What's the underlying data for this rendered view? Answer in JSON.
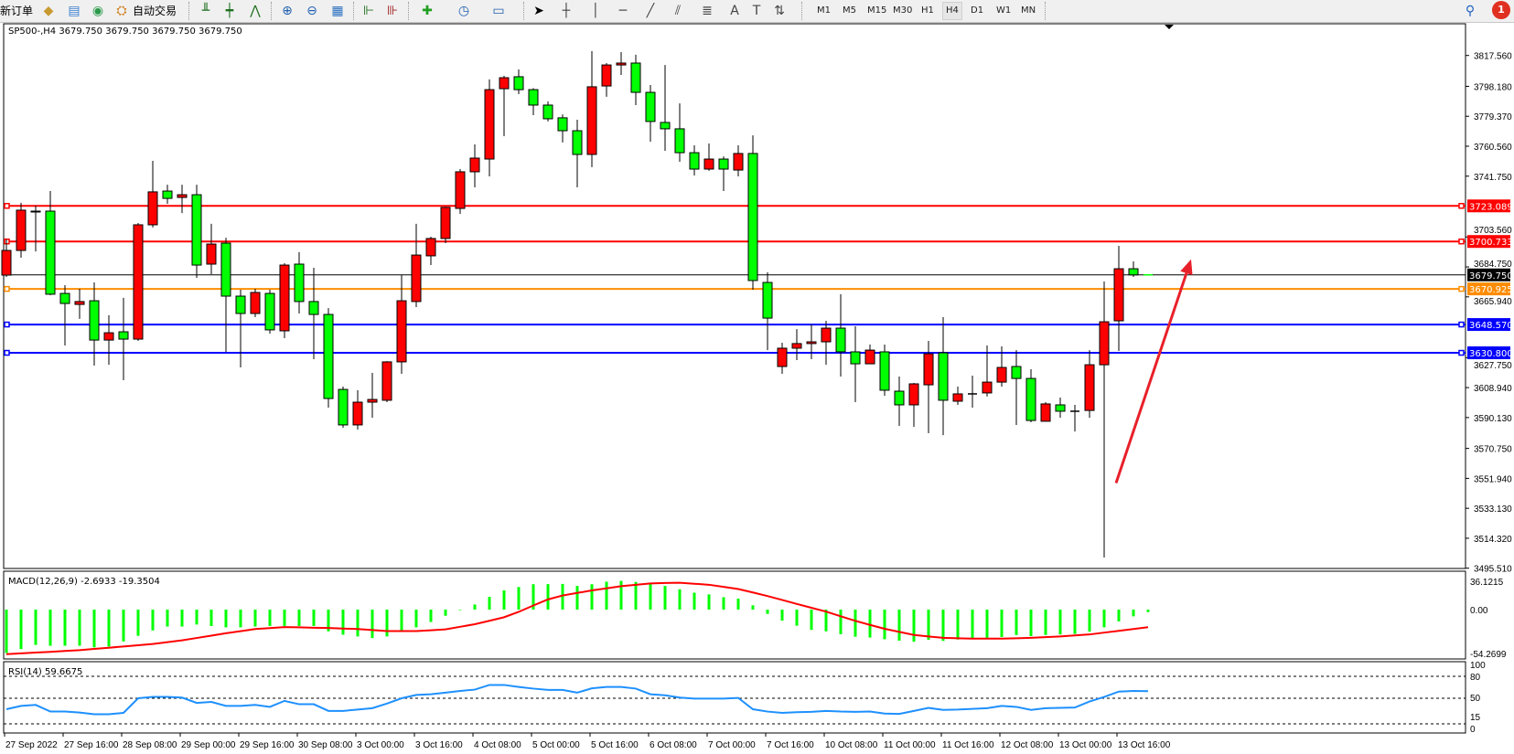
{
  "toolbar": {
    "new_order": "新订单",
    "auto_trading": "自动交易",
    "icons": [
      "history-center-icon",
      "market-watch-icon",
      "signals-icon",
      "bar-chart-icon",
      "candlestick-chart-icon",
      "line-chart-icon",
      "zoom-in-icon",
      "zoom-out-icon",
      "tile-windows-icon",
      "chart-shift-icon",
      "autoscroll-icon",
      "indicators-icon",
      "periods-icon",
      "templates-icon",
      "cursor-icon",
      "crosshair-icon",
      "vertical-line-icon",
      "horizontal-line-icon",
      "trendline-icon",
      "equidistant-channel-icon",
      "fibonacci-icon",
      "text-icon",
      "text-label-icon",
      "arrows-icon"
    ],
    "periods": [
      "M1",
      "M5",
      "M15",
      "M30",
      "H1",
      "H4",
      "D1",
      "W1",
      "MN"
    ],
    "active_period": "H4",
    "notification_count": "1"
  },
  "chart_data": {
    "type": "candlestick",
    "title": "SP500-,H4  3679.750 3679.750 3679.750 3679.750",
    "up_color": "#ff0000",
    "down_color": "#00ff00",
    "candles": [
      [
        3679.6,
        3702.0,
        3678.5,
        3695.1
      ],
      [
        3695.1,
        3725.0,
        3690.5,
        3720.4
      ],
      [
        3719.8,
        3723.2,
        3694.5,
        3719.7
      ],
      [
        3719.8,
        3732.4,
        3667.0,
        3667.6
      ],
      [
        3668.1,
        3673.3,
        3635.4,
        3661.8
      ],
      [
        3661.2,
        3671.0,
        3652.1,
        3663.0
      ],
      [
        3663.5,
        3675.0,
        3622.8,
        3638.8
      ],
      [
        3638.8,
        3654.4,
        3623.3,
        3643.4
      ],
      [
        3644.0,
        3665.3,
        3613.6,
        3639.4
      ],
      [
        3639.4,
        3712.3,
        3638.3,
        3711.2
      ],
      [
        3711.2,
        3751.4,
        3709.5,
        3731.9
      ],
      [
        3732.4,
        3736.4,
        3724.4,
        3727.8
      ],
      [
        3728.4,
        3736.4,
        3718.6,
        3730.1
      ],
      [
        3730.1,
        3736.4,
        3677.9,
        3685.9
      ],
      [
        3686.5,
        3711.8,
        3680.2,
        3699.1
      ],
      [
        3699.7,
        3703.1,
        3631.4,
        3666.4
      ],
      [
        3666.4,
        3670.4,
        3621.6,
        3655.5
      ],
      [
        3655.5,
        3671.0,
        3653.2,
        3668.7
      ],
      [
        3668.1,
        3670.4,
        3642.9,
        3645.2
      ],
      [
        3644.6,
        3687.1,
        3640.0,
        3685.9
      ],
      [
        3686.5,
        3694.0,
        3655.5,
        3663.0
      ],
      [
        3663.0,
        3684.2,
        3626.8,
        3654.9
      ],
      [
        3654.9,
        3658.9,
        3596.4,
        3602.1
      ],
      [
        3607.8,
        3609.6,
        3583.7,
        3585.5
      ],
      [
        3585.5,
        3607.3,
        3582.6,
        3599.8
      ],
      [
        3599.8,
        3618.2,
        3590.0,
        3601.5
      ],
      [
        3601.0,
        3625.6,
        3599.8,
        3625.1
      ],
      [
        3625.1,
        3679.6,
        3617.6,
        3663.5
      ],
      [
        3663.0,
        3711.8,
        3659.5,
        3692.2
      ],
      [
        3691.7,
        3703.7,
        3685.9,
        3702.6
      ],
      [
        3702.6,
        3722.5,
        3699.7,
        3722.1
      ],
      [
        3721.5,
        3746.2,
        3718.1,
        3744.5
      ],
      [
        3744.5,
        3761.7,
        3734.7,
        3753.1
      ],
      [
        3752.5,
        3802.5,
        3741.6,
        3796.1
      ],
      [
        3796.7,
        3804.8,
        3766.9,
        3803.6
      ],
      [
        3804.2,
        3808.8,
        3793.3,
        3796.1
      ],
      [
        3796.1,
        3797.0,
        3780.1,
        3786.4
      ],
      [
        3786.4,
        3788.7,
        3776.1,
        3777.8
      ],
      [
        3778.4,
        3780.6,
        3762.9,
        3770.3
      ],
      [
        3770.3,
        3777.2,
        3734.7,
        3755.4
      ],
      [
        3755.4,
        3820.3,
        3747.4,
        3797.9
      ],
      [
        3798.4,
        3812.8,
        3791.6,
        3811.6
      ],
      [
        3811.6,
        3819.7,
        3805.3,
        3812.8
      ],
      [
        3812.8,
        3818.0,
        3786.4,
        3794.4
      ],
      [
        3794.4,
        3799.0,
        3763.4,
        3776.1
      ],
      [
        3775.5,
        3811.6,
        3757.7,
        3771.5
      ],
      [
        3771.5,
        3787.5,
        3750.8,
        3756.5
      ],
      [
        3756.5,
        3761.1,
        3742.2,
        3746.2
      ],
      [
        3746.2,
        3762.3,
        3745.1,
        3752.5
      ],
      [
        3752.5,
        3754.2,
        3732.4,
        3746.2
      ],
      [
        3745.6,
        3761.1,
        3741.6,
        3756.0
      ],
      [
        3756.0,
        3767.4,
        3670.4,
        3676.2
      ],
      [
        3675.0,
        3681.3,
        3632.5,
        3652.6
      ],
      [
        3622.2,
        3637.1,
        3617.6,
        3633.7
      ],
      [
        3633.7,
        3645.7,
        3626.2,
        3636.6
      ],
      [
        3636.6,
        3648.6,
        3626.8,
        3637.7
      ],
      [
        3637.7,
        3650.9,
        3623.3,
        3646.3
      ],
      [
        3646.3,
        3667.6,
        3615.9,
        3631.4
      ],
      [
        3631.4,
        3647.5,
        3599.8,
        3623.9
      ],
      [
        3623.9,
        3636.0,
        3623.9,
        3632.5
      ],
      [
        3631.4,
        3636.0,
        3603.8,
        3607.3
      ],
      [
        3606.7,
        3615.9,
        3584.9,
        3598.1
      ],
      [
        3598.1,
        3611.9,
        3584.3,
        3611.3
      ],
      [
        3610.7,
        3638.3,
        3580.3,
        3630.2
      ],
      [
        3630.8,
        3653.2,
        3579.1,
        3601.0
      ],
      [
        3600.4,
        3609.6,
        3598.1,
        3605.0
      ],
      [
        3605.0,
        3616.5,
        3596.4,
        3605.0
      ],
      [
        3605.6,
        3635.4,
        3603.3,
        3612.4
      ],
      [
        3612.4,
        3634.8,
        3609.6,
        3621.6
      ],
      [
        3622.2,
        3632.5,
        3585.5,
        3614.7
      ],
      [
        3614.7,
        3620.5,
        3587.2,
        3588.3
      ],
      [
        3587.8,
        3599.8,
        3587.8,
        3598.7
      ],
      [
        3598.1,
        3602.7,
        3590.0,
        3594.1
      ],
      [
        3594.1,
        3598.1,
        3581.4,
        3594.1
      ],
      [
        3594.6,
        3632.5,
        3590.0,
        3623.3
      ],
      [
        3623.3,
        3675.6,
        3502.2,
        3650.3
      ],
      [
        3650.9,
        3698.0,
        3632.0,
        3683.6
      ],
      [
        3683.6,
        3688.2,
        3678.5,
        3679.75
      ],
      [
        3679.75,
        3679.75,
        3679.75,
        3679.75
      ]
    ],
    "price_axis": {
      "range": [
        3495.51,
        3817.56
      ],
      "ticks": [
        "3817.560",
        "3798.180",
        "3779.370",
        "3760.560",
        "3741.750",
        "3703.560",
        "3684.750",
        "3665.940",
        "3627.750",
        "3608.940",
        "3590.130",
        "3570.750",
        "3551.940",
        "3533.130",
        "3514.320",
        "3495.510"
      ]
    },
    "time_axis": {
      "labels": [
        "27 Sep 2022",
        "27 Sep 16:00",
        "28 Sep 08:00",
        "29 Sep 00:00",
        "29 Sep 16:00",
        "30 Sep 08:00",
        "3 Oct 00:00",
        "3 Oct 16:00",
        "4 Oct 08:00",
        "5 Oct 00:00",
        "5 Oct 16:00",
        "6 Oct 08:00",
        "7 Oct 00:00",
        "7 Oct 16:00",
        "10 Oct 08:00",
        "11 Oct 00:00",
        "11 Oct 16:00",
        "12 Oct 08:00",
        "13 Oct 00:00",
        "13 Oct 16:00"
      ],
      "label_every_n_bars": 4
    },
    "hlines": [
      {
        "price": 3723.089,
        "label": "3723.089",
        "color": "#ff0000"
      },
      {
        "price": 3700.733,
        "label": "3700.733",
        "color": "#ff0000"
      },
      {
        "price": 3670.925,
        "label": "3670.925",
        "color": "#ff8c00"
      },
      {
        "price": 3648.57,
        "label": "3648.570",
        "color": "#0000ff"
      },
      {
        "price": 3630.8,
        "label": "3630.800",
        "color": "#0000ff"
      }
    ],
    "bid": {
      "price": 3679.75,
      "label": "3679.750",
      "color": "#000000"
    },
    "arrow": {
      "color": "#e8202a",
      "from": {
        "bar": 76,
        "price": 3549.0
      },
      "to": {
        "bar": 81,
        "price": 3689.5
      }
    },
    "macd": {
      "label": "MACD(12,26,9) -2.6933 -19.3504",
      "range": [
        -54.2699,
        36.1215
      ],
      "ticks": [
        "36.1215",
        "0.00",
        "-54.2699"
      ],
      "hist_color": "#00ff00",
      "signal_color": "#ff0000",
      "histogram": [
        -47.7,
        -43.4,
        -38.8,
        -39.7,
        -39.7,
        -39.7,
        -41.5,
        -40.6,
        -35.0,
        -28.8,
        -22.9,
        -18.6,
        -18.6,
        -16.4,
        -18.0,
        -19.5,
        -19.5,
        -18.6,
        -18.0,
        -18.0,
        -18.0,
        -18.0,
        -23.9,
        -27.6,
        -29.5,
        -31.3,
        -29.5,
        -23.9,
        -19.5,
        -13.6,
        -6.8,
        -0.6,
        5.6,
        14.0,
        21.1,
        24.8,
        27.9,
        28.0,
        28.2,
        26.0,
        27.9,
        30.7,
        31.6,
        30.4,
        28.2,
        26.0,
        22.3,
        18.6,
        16.7,
        13.6,
        12.1,
        4.7,
        -4.7,
        -12.1,
        -17.7,
        -22.3,
        -23.9,
        -27.0,
        -29.8,
        -30.7,
        -32.6,
        -34.1,
        -35.3,
        -33.2,
        -34.4,
        -32.9,
        -31.6,
        -31.6,
        -30.1,
        -27.9,
        -29.1,
        -27.9,
        -27.3,
        -26.7,
        -24.2,
        -19.5,
        -13.0,
        -7.4,
        -2.6933
      ],
      "signal": [
        -49.0,
        -48.1,
        -47.2,
        -46.4,
        -45.5,
        -44.6,
        -43.2,
        -41.9,
        -40.5,
        -39.2,
        -37.8,
        -35.8,
        -33.8,
        -31.2,
        -28.6,
        -26.0,
        -23.7,
        -21.4,
        -20.3,
        -19.2,
        -19.5,
        -19.9,
        -20.2,
        -20.8,
        -21.4,
        -22.5,
        -23.6,
        -23.6,
        -23.6,
        -22.7,
        -21.7,
        -18.9,
        -16.1,
        -12.3,
        -8.4,
        -2.5,
        4.5,
        11.2,
        15.5,
        18.3,
        21.1,
        23.4,
        25.7,
        27.3,
        28.8,
        29.2,
        29.5,
        28.4,
        27.3,
        25.0,
        22.6,
        18.8,
        14.9,
        10.6,
        6.2,
        2.0,
        -2.2,
        -7.3,
        -12.4,
        -16.8,
        -21.1,
        -24.5,
        -27.9,
        -29.5,
        -31.0,
        -31.5,
        -31.9,
        -31.9,
        -31.9,
        -31.5,
        -31.0,
        -30.3,
        -29.5,
        -28.4,
        -27.3,
        -25.3,
        -23.3,
        -21.3,
        -19.3504
      ]
    },
    "rsi": {
      "label": "RSI(14) 59.6675",
      "range": [
        0,
        100
      ],
      "ticks": [
        "100",
        "80",
        "50",
        "15",
        "0"
      ],
      "levels": [
        80,
        50,
        15
      ],
      "color": "#1e90ff",
      "values": [
        35.0,
        39.5,
        40.9,
        31.8,
        31.8,
        30.5,
        28.2,
        28.2,
        30.0,
        50.0,
        51.8,
        51.8,
        50.9,
        43.6,
        45.0,
        39.5,
        39.5,
        40.9,
        38.2,
        46.4,
        41.8,
        41.8,
        32.7,
        32.7,
        34.5,
        36.4,
        42.7,
        50.0,
        54.5,
        55.5,
        57.7,
        60.0,
        61.8,
        68.2,
        68.2,
        65.5,
        63.2,
        61.4,
        61.4,
        57.7,
        63.6,
        65.5,
        65.5,
        63.2,
        55.5,
        54.1,
        50.9,
        49.5,
        49.5,
        49.5,
        50.5,
        35.0,
        31.8,
        30.0,
        30.9,
        31.4,
        32.7,
        31.8,
        31.4,
        31.8,
        29.1,
        28.6,
        32.7,
        36.8,
        34.1,
        34.5,
        35.5,
        36.4,
        39.5,
        38.2,
        34.1,
        36.4,
        36.8,
        37.3,
        45.5,
        51.8,
        59.1,
        60.0,
        59.6675
      ]
    }
  }
}
